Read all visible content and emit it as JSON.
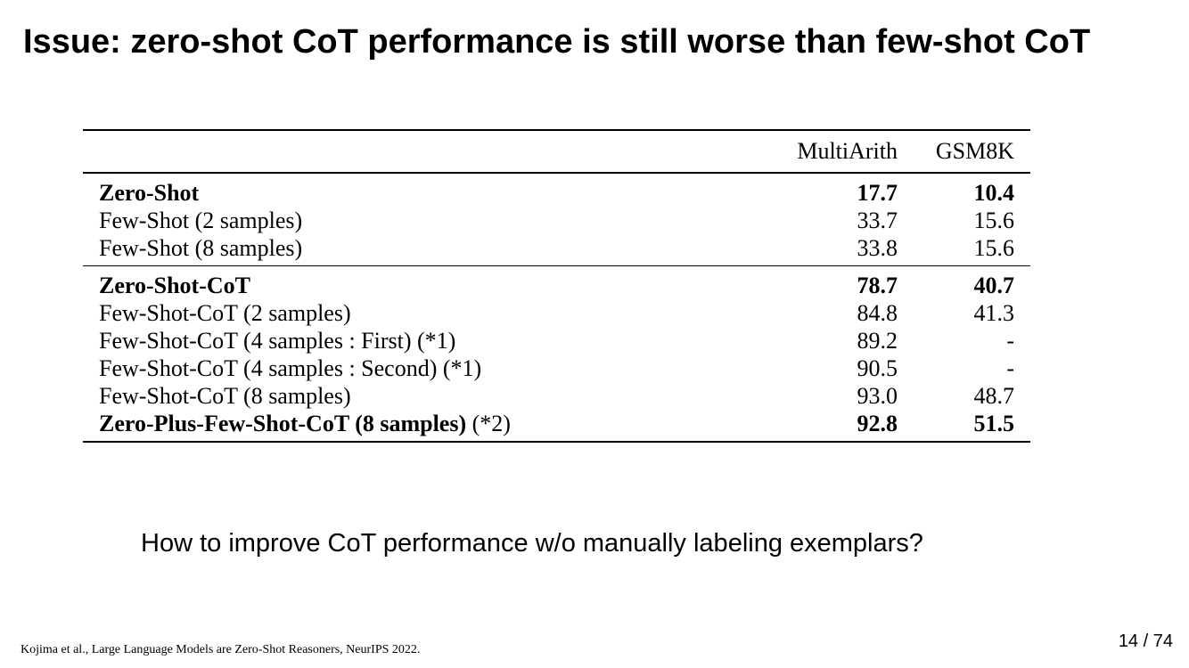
{
  "slide": {
    "title": "Issue: zero-shot CoT performance is still worse than few-shot CoT",
    "question": "How to improve CoT performance w/o manually labeling exemplars?",
    "citation": "Kojima et al., Large Language Models are Zero-Shot Reasoners, NeurIPS 2022.",
    "page_number": "14",
    "page_separator": "/",
    "page_total": "74"
  },
  "table": {
    "columns": [
      "",
      "MultiArith",
      "GSM8K"
    ],
    "groups": [
      {
        "rows": [
          {
            "label": "Zero-Shot",
            "label_suffix": "",
            "multiarith": "17.7",
            "gsm8k": "10.4",
            "bold": true
          },
          {
            "label": "Few-Shot (2 samples)",
            "label_suffix": "",
            "multiarith": "33.7",
            "gsm8k": "15.6",
            "bold": false
          },
          {
            "label": "Few-Shot (8 samples)",
            "label_suffix": "",
            "multiarith": "33.8",
            "gsm8k": "15.6",
            "bold": false
          }
        ]
      },
      {
        "rows": [
          {
            "label": "Zero-Shot-CoT",
            "label_suffix": "",
            "multiarith": "78.7",
            "gsm8k": "40.7",
            "bold": true
          },
          {
            "label": "Few-Shot-CoT (2 samples)",
            "label_suffix": "",
            "multiarith": "84.8",
            "gsm8k": "41.3",
            "bold": false
          },
          {
            "label": "Few-Shot-CoT (4 samples : First) (*1)",
            "label_suffix": "",
            "multiarith": "89.2",
            "gsm8k": "-",
            "bold": false
          },
          {
            "label": "Few-Shot-CoT (4 samples : Second) (*1)",
            "label_suffix": "",
            "multiarith": "90.5",
            "gsm8k": "-",
            "bold": false
          },
          {
            "label": "Few-Shot-CoT (8 samples)",
            "label_suffix": "",
            "multiarith": "93.0",
            "gsm8k": "48.7",
            "bold": false
          },
          {
            "label": "Zero-Plus-Few-Shot-CoT (8 samples)",
            "label_suffix": " (*2)",
            "multiarith": "92.8",
            "gsm8k": "51.5",
            "bold": true
          }
        ]
      }
    ]
  }
}
